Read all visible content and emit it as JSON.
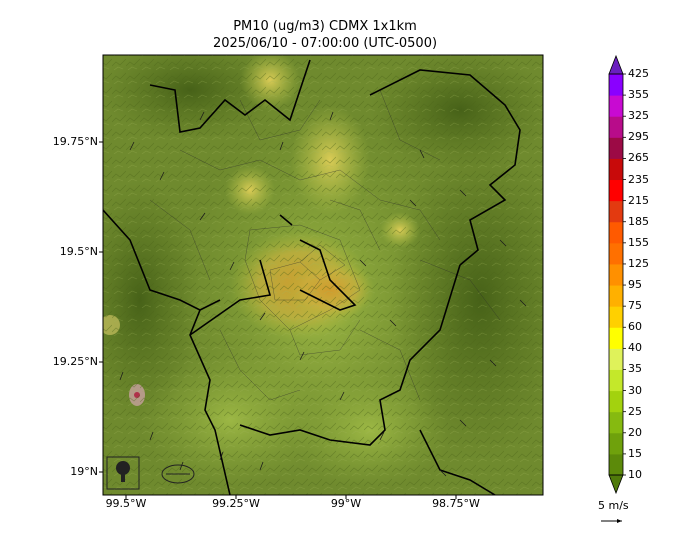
{
  "title": {
    "line1": "PM10 (ug/m3) CDMX 1x1km",
    "line2": "2025/06/10 - 07:00:00 (UTC-0500)"
  },
  "axes": {
    "lat_ticks": [
      "19.75°N",
      "19.5°N",
      "19.25°N",
      "19°N"
    ],
    "lon_ticks": [
      "99.5°W",
      "99.25°W",
      "99°W",
      "98.75°W"
    ]
  },
  "colorbar": {
    "levels": [
      "10",
      "15",
      "20",
      "25",
      "30",
      "35",
      "40",
      "60",
      "75",
      "95",
      "125",
      "155",
      "185",
      "215",
      "235",
      "265",
      "295",
      "325",
      "355",
      "425"
    ],
    "colors": [
      "#5c8a0a",
      "#6fa10c",
      "#86ba10",
      "#a3d20e",
      "#c4e82a",
      "#dff25a",
      "#ffff00",
      "#ffd000",
      "#ffb000",
      "#ff9000",
      "#ff7000",
      "#ff5a00",
      "#e33a10",
      "#ff0000",
      "#c80a0a",
      "#9c0a45",
      "#b80c8a",
      "#c80ad2",
      "#8a00ff",
      "#6a1fbf"
    ],
    "over_color": "#5a2a9a",
    "under_color": "#4f7a0a"
  },
  "wind_key": {
    "label": "5 m/s"
  },
  "map": {
    "base_color": "#6f8a2e",
    "hotspot_colors": [
      "#c8b43a",
      "#d9a030",
      "#e0c84a"
    ]
  }
}
